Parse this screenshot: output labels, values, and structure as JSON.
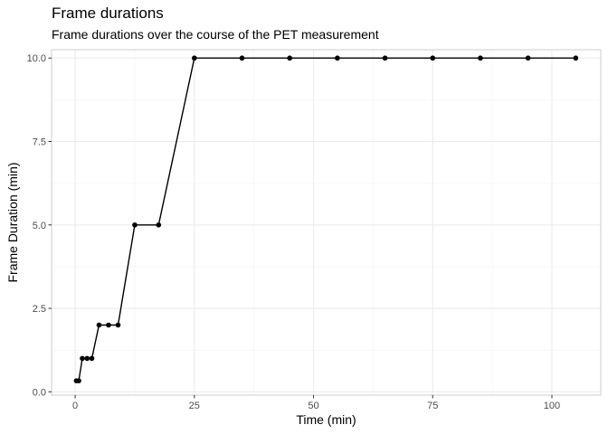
{
  "chart_data": {
    "type": "line",
    "title": "Frame durations",
    "subtitle": "Frame durations over the course of the PET measurement",
    "xlabel": "Time (min)",
    "ylabel": "Frame Duration (min)",
    "xlim": [
      -4.95,
      110.25
    ],
    "ylim": [
      -0.1,
      10.25
    ],
    "x_ticks": [
      0,
      25,
      50,
      75,
      100
    ],
    "y_ticks": [
      0,
      2.5,
      5,
      7.5,
      10
    ],
    "x_tick_labels": [
      "0",
      "25",
      "50",
      "75",
      "100"
    ],
    "y_tick_labels": [
      "0.0",
      "2.5",
      "5.0",
      "7.5",
      "10.0"
    ],
    "grid": true,
    "series": [
      {
        "x": [
          0.25,
          0.75,
          1.5,
          2.5,
          3.5,
          5,
          7,
          9,
          12.5,
          17.5,
          25,
          35,
          45,
          55,
          65,
          75,
          85,
          95,
          105
        ],
        "y": [
          0.33,
          0.33,
          1,
          1,
          1,
          2,
          2,
          2,
          5,
          5,
          10,
          10,
          10,
          10,
          10,
          10,
          10,
          10,
          10
        ],
        "color": "#000000"
      }
    ]
  }
}
